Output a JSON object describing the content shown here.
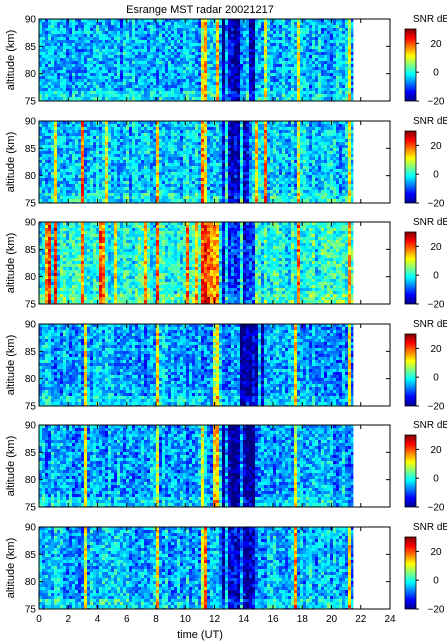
{
  "title": "Esrange MST radar 20021217",
  "colorbar": {
    "label": "SNR dB",
    "ticks": [
      "20",
      "0",
      "−20"
    ],
    "range": [
      -20,
      30
    ],
    "colors": [
      "#00008f",
      "#0000ff",
      "#0080ff",
      "#00ffff",
      "#80ff80",
      "#ffff00",
      "#ff8000",
      "#ff0000",
      "#800000"
    ]
  },
  "chart_data": {
    "type": "heatmap",
    "title": "Esrange MST radar 20021217",
    "xlabel": "time (UT)",
    "ylabel": "altitude (km)",
    "xlim": [
      0,
      24
    ],
    "ylim": [
      75,
      90
    ],
    "x_ticks": [
      "0",
      "2",
      "4",
      "6",
      "8",
      "10",
      "12",
      "14",
      "16",
      "18",
      "20",
      "22",
      "24"
    ],
    "y_ticks": [
      "75",
      "80",
      "85",
      "90"
    ],
    "data_end_time": 21.5,
    "panels_count_note": "six stacked panels share the same axes",
    "panels": [
      {
        "id": "panel-1",
        "mean_snr": -5,
        "bright_times": [
          11.0,
          11.3,
          12.1,
          15.3,
          17.6,
          21.2
        ],
        "dark_times": [
          12.5,
          13.0,
          13.5,
          14.5
        ]
      },
      {
        "id": "panel-2",
        "mean_snr": -4,
        "bright_times": [
          1.0,
          2.8,
          4.5,
          8.0,
          11.0,
          11.3,
          14.8,
          15.3,
          17.7,
          21.2
        ],
        "dark_times": [
          12.5,
          13.0,
          13.5,
          14.1
        ]
      },
      {
        "id": "panel-3",
        "mean_snr": 0,
        "bright_times": [
          0.5,
          1.0,
          2.8,
          4.2,
          5.2,
          7.2,
          8.0,
          10.0,
          10.6,
          11.0,
          11.3,
          11.6,
          12.0,
          17.7,
          21.2
        ],
        "dark_times": [
          12.5,
          13.0,
          13.5,
          14.0,
          14.5
        ]
      },
      {
        "id": "panel-4",
        "mean_snr": -6,
        "bright_times": [
          3.0,
          8.0,
          12.0,
          17.5,
          21.2
        ],
        "dark_times": [
          13.8,
          14.2,
          14.7,
          15.2
        ]
      },
      {
        "id": "panel-5",
        "mean_snr": -6,
        "bright_times": [
          3.0,
          8.0,
          11.0,
          12.0,
          17.5
        ],
        "dark_times": [
          12.5,
          13.0,
          13.5,
          14.0,
          14.5
        ]
      },
      {
        "id": "panel-6",
        "mean_snr": -5,
        "bright_times": [
          3.0,
          8.0,
          11.0,
          11.3,
          17.5,
          21.2
        ],
        "dark_times": [
          12.5,
          13.0,
          13.5,
          14.1,
          14.5
        ]
      }
    ]
  }
}
